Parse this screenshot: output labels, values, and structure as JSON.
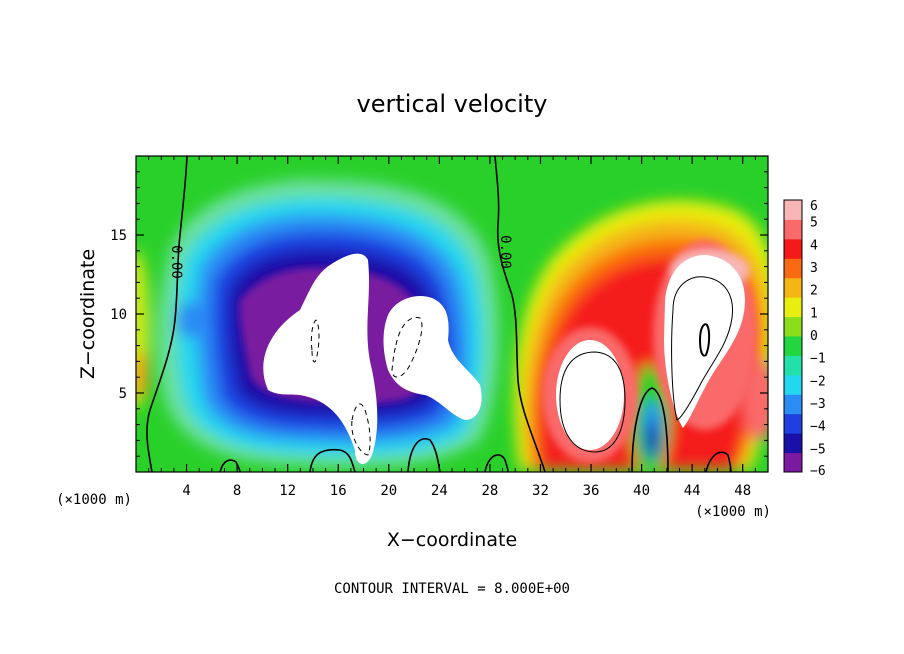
{
  "chart_data": {
    "type": "heatmap",
    "title": "vertical velocity",
    "xlabel": "X−coordinate",
    "ylabel": "Z−coordinate",
    "x_unit_left": "(×1000 m)",
    "x_unit_right": "(×1000 m)",
    "xlim": [
      0,
      50
    ],
    "ylim": [
      0,
      20
    ],
    "x_ticks": [
      4,
      8,
      12,
      16,
      20,
      24,
      28,
      32,
      36,
      40,
      44,
      48
    ],
    "x_tick_labels": [
      "4",
      "8",
      "12",
      "16",
      "20",
      "24",
      "28",
      "32",
      "36",
      "40",
      "44",
      "48"
    ],
    "y_ticks": [
      5,
      10,
      15
    ],
    "y_tick_labels": [
      "5",
      "10",
      "15"
    ],
    "colorbar": {
      "min": -6,
      "max": 6,
      "tick_values": [
        6,
        5,
        4,
        3,
        2,
        1,
        0,
        -1,
        -2,
        -3,
        -4,
        -5,
        -6
      ],
      "tick_labels": [
        "6",
        "5",
        "4",
        "3",
        "2",
        "1",
        "0",
        "−1",
        "−2",
        "−3",
        "−4",
        "−5",
        "−6"
      ],
      "colors": [
        "#7a1aa0",
        "#1a10a8",
        "#1f3fe0",
        "#2a8cf5",
        "#25d7ee",
        "#22e0a8",
        "#22d640",
        "#8adf1a",
        "#e8ee10",
        "#f5b515",
        "#fa6a10",
        "#f51a1a",
        "#fa6a6a",
        "#f8b6b6"
      ]
    },
    "contour_labels": [
      "0.00",
      "0.00"
    ],
    "annotation": "CONTOUR INTERVAL = 8.000E+00",
    "features": [
      {
        "kind": "downdraft",
        "x_center": 17,
        "z_center": 9,
        "min_value": -6
      },
      {
        "kind": "downdraft",
        "x_center": 23,
        "z_center": 8,
        "min_value": -6
      },
      {
        "kind": "updraft",
        "x_center": 35.5,
        "z_center": 5.5,
        "max_value": 6
      },
      {
        "kind": "updraft",
        "x_center": 45,
        "z_center": 9.5,
        "max_value": 6
      }
    ]
  }
}
